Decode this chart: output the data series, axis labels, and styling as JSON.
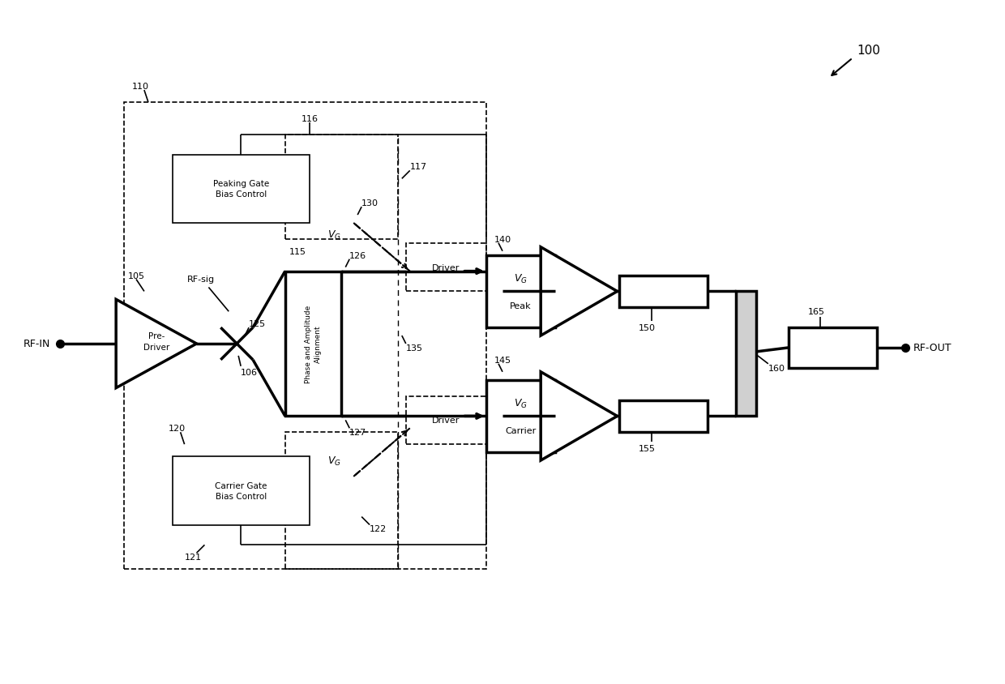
{
  "bg_color": "#ffffff",
  "line_color": "#000000",
  "fig_width": 12.4,
  "fig_height": 8.45,
  "dpi": 100,
  "ref_number": "100",
  "labels": {
    "rf_in": "RF-IN",
    "rf_out": "RF-OUT",
    "rf_sig": "RF-sig",
    "pre_driver": "Pre-\nDriver",
    "phase_amp": "Phase and Amplitude\nAlignment",
    "peaking_gate": "Peaking Gate\nBias Control",
    "carrier_gate": "Carrier Gate\nBias Control",
    "driver_top": "Driver",
    "driver_bot": "Driver",
    "peak": "Peak",
    "carrier": "Carrier",
    "n100": "100",
    "n105": "105",
    "n106": "106",
    "n110": "110",
    "n115": "115",
    "n116": "116",
    "n117": "117",
    "n120": "120",
    "n121": "121",
    "n122": "122",
    "n125": "125",
    "n126": "126",
    "n127": "127",
    "n130": "130",
    "n135": "135",
    "n140": "140",
    "n145": "145",
    "n150": "150",
    "n155": "155",
    "n160": "160",
    "n165": "165"
  }
}
